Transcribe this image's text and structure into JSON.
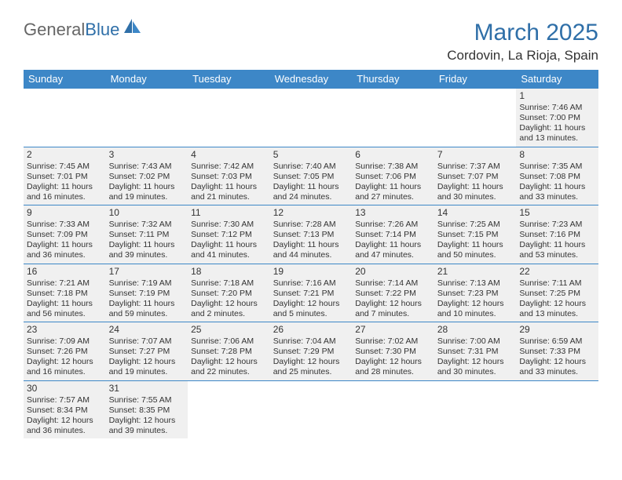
{
  "logo": {
    "text1": "General",
    "text2": "Blue"
  },
  "title": "March 2025",
  "location": "Cordovin, La Rioja, Spain",
  "colors": {
    "brand": "#3d87c7",
    "title": "#2f6fa8",
    "shade": "#f0f0f0"
  },
  "headers": [
    "Sunday",
    "Monday",
    "Tuesday",
    "Wednesday",
    "Thursday",
    "Friday",
    "Saturday"
  ],
  "weeks": [
    [
      null,
      null,
      null,
      null,
      null,
      null,
      {
        "n": "1",
        "sr": "7:46 AM",
        "ss": "7:00 PM",
        "dl": "11 hours and 13 minutes."
      }
    ],
    [
      {
        "n": "2",
        "sr": "7:45 AM",
        "ss": "7:01 PM",
        "dl": "11 hours and 16 minutes."
      },
      {
        "n": "3",
        "sr": "7:43 AM",
        "ss": "7:02 PM",
        "dl": "11 hours and 19 minutes."
      },
      {
        "n": "4",
        "sr": "7:42 AM",
        "ss": "7:03 PM",
        "dl": "11 hours and 21 minutes."
      },
      {
        "n": "5",
        "sr": "7:40 AM",
        "ss": "7:05 PM",
        "dl": "11 hours and 24 minutes."
      },
      {
        "n": "6",
        "sr": "7:38 AM",
        "ss": "7:06 PM",
        "dl": "11 hours and 27 minutes."
      },
      {
        "n": "7",
        "sr": "7:37 AM",
        "ss": "7:07 PM",
        "dl": "11 hours and 30 minutes."
      },
      {
        "n": "8",
        "sr": "7:35 AM",
        "ss": "7:08 PM",
        "dl": "11 hours and 33 minutes."
      }
    ],
    [
      {
        "n": "9",
        "sr": "7:33 AM",
        "ss": "7:09 PM",
        "dl": "11 hours and 36 minutes."
      },
      {
        "n": "10",
        "sr": "7:32 AM",
        "ss": "7:11 PM",
        "dl": "11 hours and 39 minutes."
      },
      {
        "n": "11",
        "sr": "7:30 AM",
        "ss": "7:12 PM",
        "dl": "11 hours and 41 minutes."
      },
      {
        "n": "12",
        "sr": "7:28 AM",
        "ss": "7:13 PM",
        "dl": "11 hours and 44 minutes."
      },
      {
        "n": "13",
        "sr": "7:26 AM",
        "ss": "7:14 PM",
        "dl": "11 hours and 47 minutes."
      },
      {
        "n": "14",
        "sr": "7:25 AM",
        "ss": "7:15 PM",
        "dl": "11 hours and 50 minutes."
      },
      {
        "n": "15",
        "sr": "7:23 AM",
        "ss": "7:16 PM",
        "dl": "11 hours and 53 minutes."
      }
    ],
    [
      {
        "n": "16",
        "sr": "7:21 AM",
        "ss": "7:18 PM",
        "dl": "11 hours and 56 minutes."
      },
      {
        "n": "17",
        "sr": "7:19 AM",
        "ss": "7:19 PM",
        "dl": "11 hours and 59 minutes."
      },
      {
        "n": "18",
        "sr": "7:18 AM",
        "ss": "7:20 PM",
        "dl": "12 hours and 2 minutes."
      },
      {
        "n": "19",
        "sr": "7:16 AM",
        "ss": "7:21 PM",
        "dl": "12 hours and 5 minutes."
      },
      {
        "n": "20",
        "sr": "7:14 AM",
        "ss": "7:22 PM",
        "dl": "12 hours and 7 minutes."
      },
      {
        "n": "21",
        "sr": "7:13 AM",
        "ss": "7:23 PM",
        "dl": "12 hours and 10 minutes."
      },
      {
        "n": "22",
        "sr": "7:11 AM",
        "ss": "7:25 PM",
        "dl": "12 hours and 13 minutes."
      }
    ],
    [
      {
        "n": "23",
        "sr": "7:09 AM",
        "ss": "7:26 PM",
        "dl": "12 hours and 16 minutes."
      },
      {
        "n": "24",
        "sr": "7:07 AM",
        "ss": "7:27 PM",
        "dl": "12 hours and 19 minutes."
      },
      {
        "n": "25",
        "sr": "7:06 AM",
        "ss": "7:28 PM",
        "dl": "12 hours and 22 minutes."
      },
      {
        "n": "26",
        "sr": "7:04 AM",
        "ss": "7:29 PM",
        "dl": "12 hours and 25 minutes."
      },
      {
        "n": "27",
        "sr": "7:02 AM",
        "ss": "7:30 PM",
        "dl": "12 hours and 28 minutes."
      },
      {
        "n": "28",
        "sr": "7:00 AM",
        "ss": "7:31 PM",
        "dl": "12 hours and 30 minutes."
      },
      {
        "n": "29",
        "sr": "6:59 AM",
        "ss": "7:33 PM",
        "dl": "12 hours and 33 minutes."
      }
    ],
    [
      {
        "n": "30",
        "sr": "7:57 AM",
        "ss": "8:34 PM",
        "dl": "12 hours and 36 minutes."
      },
      {
        "n": "31",
        "sr": "7:55 AM",
        "ss": "8:35 PM",
        "dl": "12 hours and 39 minutes."
      },
      null,
      null,
      null,
      null,
      null
    ]
  ],
  "labels": {
    "sunrise": "Sunrise:",
    "sunset": "Sunset:",
    "daylight": "Daylight:"
  }
}
